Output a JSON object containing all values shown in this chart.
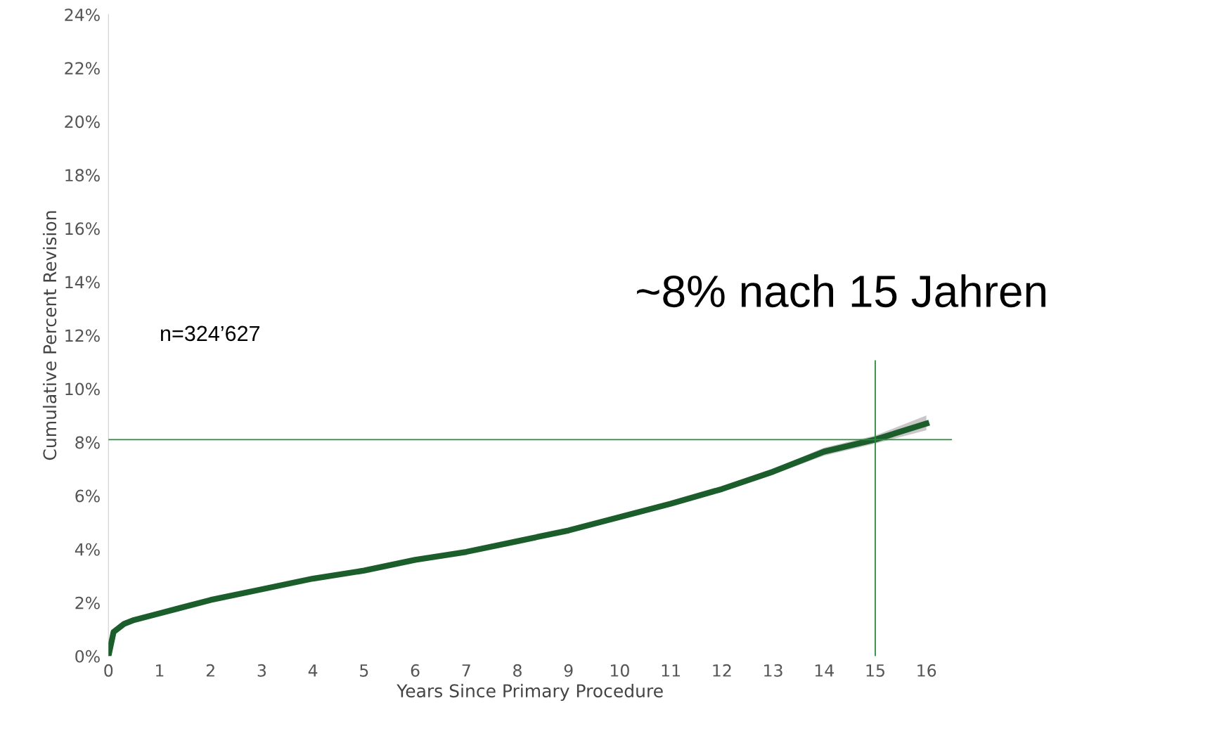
{
  "chart_data": {
    "type": "line",
    "xlabel": "Years Since Primary Procedure",
    "ylabel": "Cumulative Percent Revision",
    "xlim": [
      0,
      16.5
    ],
    "xticks": [
      0,
      1,
      2,
      3,
      4,
      5,
      6,
      7,
      8,
      9,
      10,
      11,
      12,
      13,
      14,
      15,
      16
    ],
    "ylim": [
      0,
      24
    ],
    "yticks": [
      {
        "value": 0,
        "label": "0%"
      },
      {
        "value": 2,
        "label": "2%"
      },
      {
        "value": 4,
        "label": "4%"
      },
      {
        "value": 6,
        "label": "6%"
      },
      {
        "value": 8,
        "label": "8%"
      },
      {
        "value": 10,
        "label": "10%"
      },
      {
        "value": 12,
        "label": "12%"
      },
      {
        "value": 14,
        "label": "14%"
      },
      {
        "value": 16,
        "label": "16%"
      },
      {
        "value": 18,
        "label": "18%"
      },
      {
        "value": 20,
        "label": "20%"
      },
      {
        "value": 22,
        "label": "22%"
      },
      {
        "value": 24,
        "label": "24%"
      }
    ],
    "grid": false,
    "legend": false,
    "marker": "none",
    "line_style": "solid",
    "series": [
      {
        "color": "#1b5e2c",
        "x": [
          0,
          0.1,
          0.3,
          0.5,
          1,
          2,
          3,
          4,
          5,
          6,
          7,
          8,
          9,
          10,
          11,
          12,
          13,
          14,
          15,
          16
        ],
        "values": [
          0,
          0.9,
          1.2,
          1.35,
          1.6,
          2.1,
          2.5,
          2.9,
          3.2,
          3.6,
          3.9,
          4.3,
          4.7,
          5.2,
          5.7,
          6.25,
          6.9,
          7.65,
          8.1,
          8.7
        ],
        "lower": [
          0,
          0.85,
          1.15,
          1.3,
          1.55,
          2.05,
          2.45,
          2.85,
          3.15,
          3.55,
          3.85,
          4.25,
          4.65,
          5.1,
          5.6,
          6.15,
          6.8,
          7.5,
          7.95,
          8.45
        ],
        "upper": [
          0,
          0.95,
          1.25,
          1.4,
          1.65,
          2.15,
          2.55,
          2.95,
          3.25,
          3.65,
          3.95,
          4.35,
          4.75,
          5.3,
          5.8,
          6.35,
          7.0,
          7.8,
          8.25,
          9.0
        ]
      }
    ],
    "ref_lines": [
      {
        "axis": "y",
        "value": 8.1,
        "color": "#2e8b3e"
      },
      {
        "axis": "x",
        "value": 15,
        "color": "#2e8b3e"
      }
    ],
    "annotations": [
      "n=324’627",
      "~8% nach 15 Jahren"
    ]
  }
}
